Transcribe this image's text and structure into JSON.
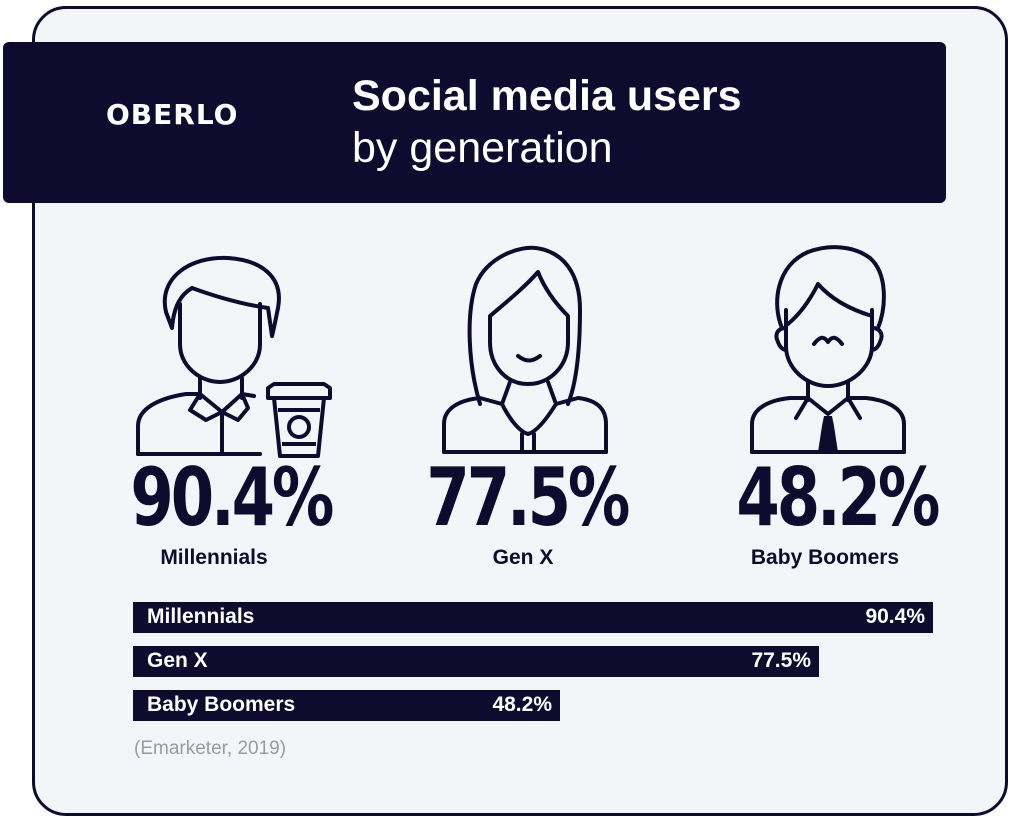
{
  "brand": "OBERLO",
  "header": {
    "title_line1": "Social media users",
    "title_line2": "by generation"
  },
  "icons": [
    "millennial-person-icon",
    "coffee-cup-icon",
    "gen-x-woman-icon",
    "baby-boomer-man-icon"
  ],
  "colors": {
    "navy": "#0f0b2e",
    "card_bg": "#f4f5f8",
    "text_light": "#ffffff",
    "source_gray": "#9a9aa6"
  },
  "source": "(Emarketer, 2019)",
  "chart_data": {
    "type": "bar",
    "orientation": "horizontal",
    "title": "Social media users by generation",
    "categories": [
      "Millennials",
      "Gen X",
      "Baby Boomers"
    ],
    "values": [
      90.4,
      77.5,
      48.2
    ],
    "value_labels": [
      "90.4%",
      "77.5%",
      "48.2%"
    ],
    "unit": "%",
    "xlim": [
      0,
      90.4
    ]
  }
}
